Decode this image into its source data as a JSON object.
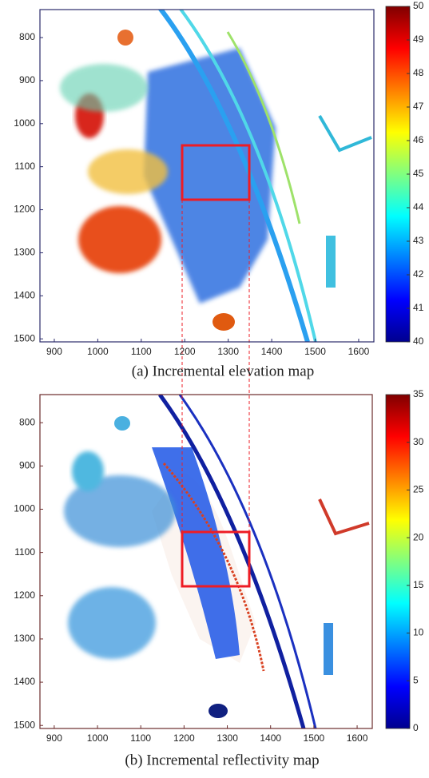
{
  "chart_data": [
    {
      "type": "heatmap",
      "caption": "(a) Incremental elevation map",
      "xlim": [
        867,
        1635
      ],
      "xticks": [
        900,
        1000,
        1100,
        1200,
        1300,
        1400,
        1500,
        1600
      ],
      "ylim": [
        735,
        1507
      ],
      "yticks": [
        800,
        900,
        1000,
        1100,
        1200,
        1300,
        1400,
        1500
      ],
      "y_reversed": true,
      "colormap": "jet",
      "colorbar_lim": [
        40,
        50
      ],
      "colorbar_ticks": [
        40,
        41,
        42,
        43,
        44,
        45,
        46,
        47,
        48,
        49,
        50
      ],
      "frame_color": "#2b2b6b"
    },
    {
      "type": "heatmap",
      "caption": "(b) Incremental reflectivity map",
      "xlim": [
        867,
        1635
      ],
      "xticks": [
        900,
        1000,
        1100,
        1200,
        1300,
        1400,
        1500,
        1600
      ],
      "ylim": [
        735,
        1507
      ],
      "yticks": [
        800,
        900,
        1000,
        1100,
        1200,
        1300,
        1400,
        1500
      ],
      "y_reversed": true,
      "colormap": "jet",
      "colorbar_lim": [
        0,
        35
      ],
      "colorbar_ticks": [
        0,
        5,
        10,
        15,
        20,
        25,
        30,
        35
      ],
      "frame_color": "#6b2b2b"
    }
  ]
}
